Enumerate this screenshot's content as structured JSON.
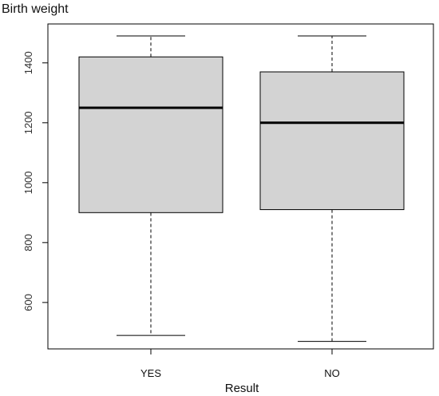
{
  "chart_data": {
    "type": "boxplot",
    "title": "Birth weight",
    "xlabel": "Result",
    "ylabel": "",
    "categories": [
      "YES",
      "NO"
    ],
    "ylim": [
      445,
      1530
    ],
    "yticks": [
      600,
      800,
      1000,
      1200,
      1400
    ],
    "ytick_labels": [
      "600",
      "800",
      "1000",
      "1200",
      "1400"
    ],
    "series": [
      {
        "category": "YES",
        "min": 490,
        "q1": 900,
        "median": 1250,
        "q3": 1420,
        "max": 1490
      },
      {
        "category": "NO",
        "min": 470,
        "q1": 910,
        "median": 1200,
        "q3": 1370,
        "max": 1490
      }
    ],
    "box_fill": "#d3d3d3",
    "grid": false,
    "legend": "none"
  }
}
